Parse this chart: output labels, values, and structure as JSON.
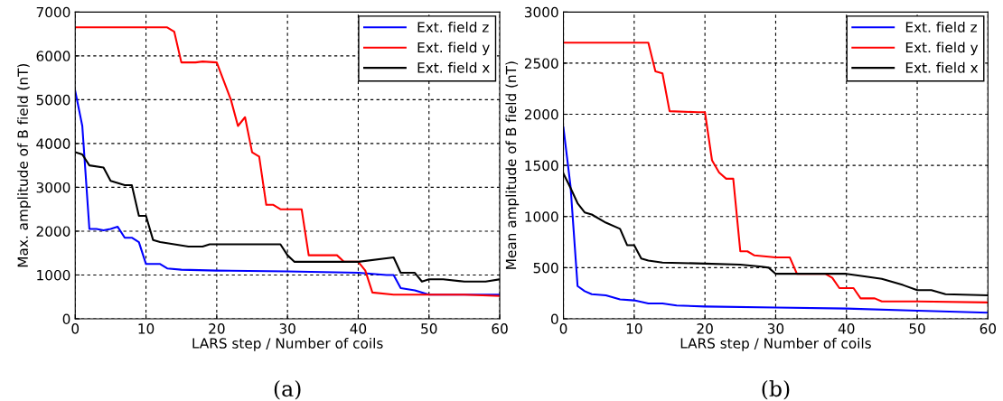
{
  "chart_data": [
    {
      "type": "line",
      "xlabel": "LARS step / Number of coils",
      "ylabel": "Max. amplitude of B field (nT)",
      "annotations": [
        "(a)"
      ],
      "xlim": [
        0,
        60
      ],
      "xticks": [
        0,
        10,
        20,
        30,
        40,
        50,
        60
      ],
      "ylim": [
        0,
        7000
      ],
      "yticks": [
        0,
        1000,
        2000,
        3000,
        4000,
        5000,
        6000,
        7000
      ],
      "grid": true,
      "legend": "top right",
      "line_style": "solid",
      "marker": "none",
      "series": [
        {
          "name": "Ext. field z",
          "color": "#0000ff",
          "x": [
            0,
            1,
            2,
            3,
            4,
            5,
            6,
            7,
            8,
            9,
            10,
            12,
            13,
            15,
            20,
            30,
            40,
            44,
            45,
            46,
            48,
            50,
            60
          ],
          "values": [
            5200,
            4400,
            2050,
            2050,
            2020,
            2050,
            2100,
            1850,
            1850,
            1750,
            1250,
            1250,
            1150,
            1120,
            1100,
            1080,
            1050,
            1000,
            1000,
            700,
            650,
            550,
            550
          ]
        },
        {
          "name": "Ext. field y",
          "color": "#ff0000",
          "x": [
            0,
            13,
            14,
            15,
            17,
            18,
            20,
            22,
            23,
            24,
            25,
            26,
            27,
            28,
            29,
            32,
            33,
            37,
            38,
            40,
            41,
            42,
            45,
            50,
            55,
            60
          ],
          "values": [
            6650,
            6650,
            6550,
            5850,
            5850,
            5870,
            5850,
            5000,
            4400,
            4600,
            3800,
            3700,
            2600,
            2600,
            2500,
            2500,
            1450,
            1450,
            1300,
            1300,
            1100,
            600,
            550,
            550,
            550,
            520
          ]
        },
        {
          "name": "Ext. field x",
          "color": "#000000",
          "x": [
            0,
            1,
            2,
            4,
            5,
            7,
            8,
            9,
            10,
            11,
            12,
            14,
            16,
            18,
            19,
            20,
            29,
            30,
            31,
            40,
            45,
            46,
            48,
            49,
            50,
            52,
            55,
            58,
            60
          ],
          "values": [
            3800,
            3750,
            3500,
            3450,
            3150,
            3050,
            3050,
            2350,
            2350,
            1800,
            1750,
            1700,
            1650,
            1650,
            1700,
            1700,
            1700,
            1450,
            1300,
            1300,
            1400,
            1050,
            1050,
            850,
            900,
            900,
            850,
            850,
            900
          ]
        }
      ]
    },
    {
      "type": "line",
      "xlabel": "LARS step / Number of coils",
      "ylabel": "Mean amplitude of B field (nT)",
      "annotations": [
        "(b)"
      ],
      "xlim": [
        0,
        60
      ],
      "xticks": [
        0,
        10,
        20,
        30,
        40,
        50,
        60
      ],
      "ylim": [
        0,
        3000
      ],
      "yticks": [
        0,
        500,
        1000,
        1500,
        2000,
        2500,
        3000
      ],
      "grid": true,
      "legend": "top right",
      "line_style": "solid",
      "marker": "none",
      "series": [
        {
          "name": "Ext. field z",
          "color": "#0000ff",
          "x": [
            0,
            1,
            2,
            3,
            4,
            6,
            8,
            10,
            12,
            14,
            16,
            20,
            30,
            40,
            50,
            60
          ],
          "values": [
            1870,
            1300,
            320,
            270,
            240,
            230,
            190,
            180,
            150,
            150,
            130,
            120,
            110,
            100,
            80,
            60
          ]
        },
        {
          "name": "Ext. field y",
          "color": "#ff0000",
          "x": [
            0,
            12,
            13,
            14,
            15,
            19,
            20,
            21,
            22,
            23,
            24,
            25,
            26,
            27,
            30,
            32,
            33,
            37,
            38,
            39,
            41,
            42,
            44,
            45,
            50,
            60
          ],
          "values": [
            2700,
            2700,
            2420,
            2400,
            2030,
            2020,
            2020,
            1550,
            1430,
            1370,
            1370,
            660,
            660,
            620,
            600,
            600,
            440,
            440,
            400,
            300,
            300,
            200,
            200,
            170,
            170,
            160
          ]
        },
        {
          "name": "Ext. field x",
          "color": "#000000",
          "x": [
            0,
            1,
            2,
            3,
            4,
            6,
            8,
            9,
            10,
            11,
            12,
            14,
            20,
            25,
            28,
            29,
            30,
            33,
            40,
            43,
            45,
            46,
            48,
            50,
            52,
            54,
            60
          ],
          "values": [
            1420,
            1280,
            1130,
            1040,
            1020,
            940,
            880,
            720,
            720,
            590,
            570,
            550,
            540,
            530,
            510,
            500,
            440,
            440,
            440,
            410,
            390,
            370,
            330,
            280,
            280,
            240,
            230
          ]
        }
      ]
    }
  ]
}
